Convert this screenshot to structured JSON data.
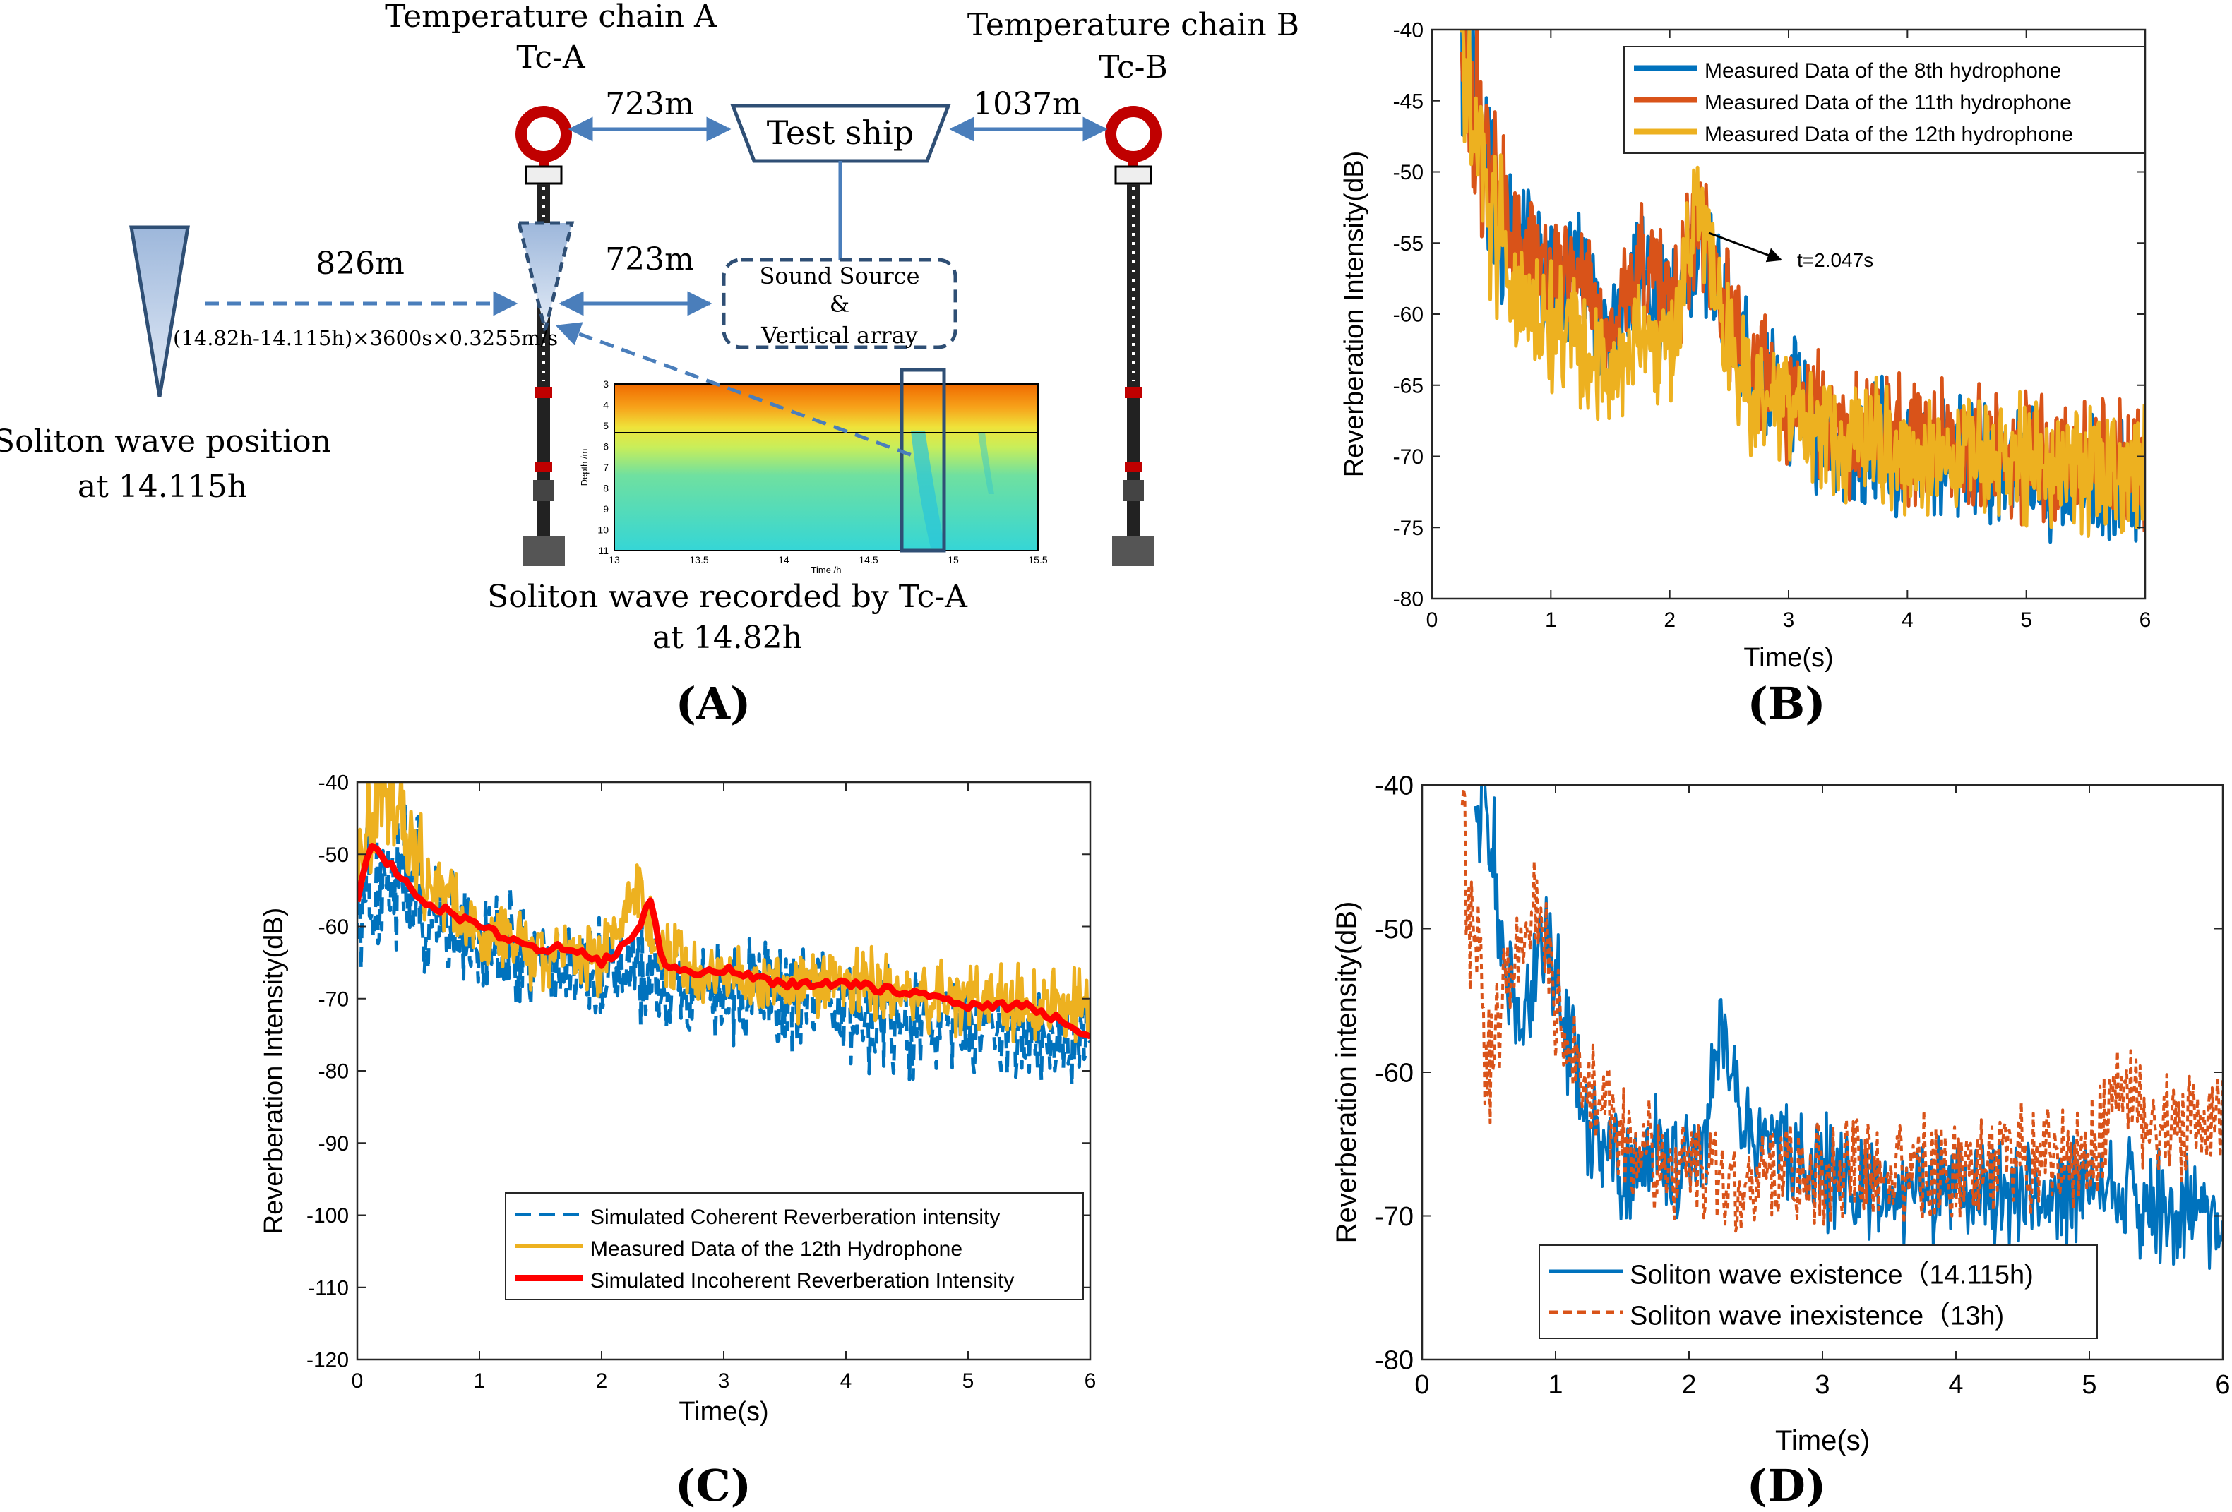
{
  "colors": {
    "blue": "#0072BD",
    "orange": "#D95319",
    "yellow": "#EDB120",
    "red": "#FF0000",
    "arrow": "#4A7EBB",
    "ring": "#C00000"
  },
  "panel_a": {
    "letter": "(A)",
    "chain_a_title": "Temperature chain A",
    "chain_a_short": "Tc-A",
    "chain_b_title": "Temperature chain B",
    "chain_b_short": "Tc-B",
    "ship_label": "Test ship",
    "dist_a_ship": "723m",
    "dist_ship_b": "1037m",
    "dist_a_source": "723m",
    "dist_soliton": "826m",
    "formula": "(14.82h-14.115h)×3600s×0.3255m/s",
    "source_line1": "Sound Source",
    "source_line2": "&",
    "source_line3": "Vertical array",
    "soliton_pos_line1": "Soliton wave position",
    "soliton_pos_line2": "at 14.115h",
    "recorded_line1": "Soliton wave recorded by Tc-A",
    "recorded_line2": "at 14.82h",
    "inset": {
      "ylabel": "Depth /m",
      "xlabel": "Time /h",
      "yticks": [
        "3",
        "4",
        "5",
        "6",
        "7",
        "8",
        "9",
        "10",
        "11"
      ],
      "xticks": [
        "13",
        "13.5",
        "14",
        "14.5",
        "15",
        "15.5"
      ]
    }
  },
  "chart_data": [
    {
      "id": "B",
      "letter": "(B)",
      "type": "line",
      "xlabel": "Time(s)",
      "ylabel": "Reverberation Intensity(dB)",
      "xlim": [
        0,
        6
      ],
      "ylim": [
        -80,
        -40
      ],
      "xticks": [
        "0",
        "1",
        "2",
        "3",
        "4",
        "5",
        "6"
      ],
      "yticks": [
        "-40",
        "-45",
        "-50",
        "-55",
        "-60",
        "-65",
        "-70",
        "-75",
        "-80"
      ],
      "annotation": "t=2.047s",
      "series": [
        {
          "name": "Measured Data of the 8th hydrophone",
          "color": "#0072BD",
          "x": [
            0.25,
            0.5,
            0.75,
            1.0,
            1.25,
            1.5,
            1.75,
            2.0,
            2.25,
            2.5,
            2.75,
            3.0,
            3.25,
            3.5,
            3.75,
            4.0,
            4.5,
            5.0,
            5.5,
            6.0
          ],
          "values": [
            -40,
            -52,
            -55,
            -58,
            -57,
            -63,
            -56,
            -61,
            -54,
            -61,
            -64,
            -66,
            -68,
            -70,
            -69,
            -70,
            -70,
            -71,
            -72,
            -72
          ]
        },
        {
          "name": "Measured Data of the 11th hydrophone",
          "color": "#D95319",
          "x": [
            0.25,
            0.5,
            0.75,
            1.0,
            1.25,
            1.5,
            1.75,
            2.0,
            2.25,
            2.5,
            2.75,
            3.0,
            3.25,
            3.5,
            3.75,
            4.0,
            4.5,
            5.0,
            5.5,
            6.0
          ],
          "values": [
            -42,
            -50,
            -56,
            -58,
            -56,
            -62,
            -56,
            -60,
            -53,
            -60,
            -64,
            -66,
            -67,
            -69,
            -68,
            -69,
            -69,
            -70,
            -70,
            -71
          ]
        },
        {
          "name": "Measured Data of the 12th hydrophone",
          "color": "#EDB120",
          "x": [
            0.25,
            0.5,
            0.75,
            1.0,
            1.25,
            1.5,
            1.75,
            2.0,
            2.25,
            2.5,
            2.75,
            3.0,
            3.25,
            3.5,
            3.75,
            4.0,
            4.5,
            5.0,
            5.5,
            6.0
          ],
          "values": [
            -43,
            -53,
            -60,
            -61,
            -62,
            -65,
            -61,
            -63,
            -52,
            -62,
            -66,
            -67,
            -68,
            -69,
            -69,
            -70,
            -70,
            -70,
            -71,
            -71
          ]
        }
      ]
    },
    {
      "id": "C",
      "letter": "(C)",
      "type": "line",
      "xlabel": "Time(s)",
      "ylabel": "Reverberation Intensity(dB)",
      "xlim": [
        0,
        6
      ],
      "ylim": [
        -120,
        -40
      ],
      "xticks": [
        "0",
        "1",
        "2",
        "3",
        "4",
        "5",
        "6"
      ],
      "yticks": [
        "-40",
        "-50",
        "-60",
        "-70",
        "-80",
        "-90",
        "-100",
        "-110",
        "-120"
      ],
      "series": [
        {
          "name": "Simulated Coherent Reverberation intensity",
          "color": "#0072BD",
          "x": [
            0.0,
            0.25,
            0.5,
            0.75,
            1.0,
            1.25,
            1.5,
            1.75,
            2.0,
            2.25,
            2.5,
            2.75,
            3.0,
            3.5,
            4.0,
            4.5,
            5.0,
            5.5,
            6.0
          ],
          "values": [
            -55,
            -52,
            -57,
            -59,
            -61,
            -63,
            -64,
            -66,
            -66,
            -65,
            -67,
            -68,
            -69,
            -70,
            -72,
            -74,
            -74,
            -75,
            -76
          ]
        },
        {
          "name": "Measured Data of the 12th Hydrophone",
          "color": "#EDB120",
          "x": [
            0.0,
            0.25,
            0.5,
            0.75,
            1.0,
            1.25,
            1.5,
            1.75,
            2.0,
            2.25,
            2.5,
            2.75,
            3.0,
            3.5,
            4.0,
            4.5,
            5.0,
            5.5,
            6.0
          ],
          "values": [
            -48,
            -40,
            -52,
            -56,
            -62,
            -62,
            -64,
            -63,
            -65,
            -55,
            -64,
            -66,
            -67,
            -68,
            -68,
            -69,
            -70,
            -71,
            -71
          ]
        },
        {
          "name": "Simulated Incoherent Reverberation Intensity",
          "color": "#FF0000",
          "x": [
            0.0,
            0.1,
            0.25,
            0.5,
            0.75,
            1.0,
            1.25,
            1.5,
            1.75,
            2.0,
            2.25,
            2.4,
            2.5,
            2.75,
            3.0,
            3.5,
            4.0,
            4.5,
            5.0,
            5.5,
            6.0
          ],
          "values": [
            -56,
            -49,
            -51,
            -56,
            -58,
            -60,
            -62,
            -63,
            -63,
            -65,
            -62,
            -56,
            -65,
            -67,
            -66,
            -68,
            -68,
            -69,
            -71,
            -71,
            -75
          ]
        }
      ]
    },
    {
      "id": "D",
      "letter": "(D)",
      "type": "line",
      "xlabel": "Time(s)",
      "ylabel": "Reverberation intensity(dB)",
      "xlim": [
        0,
        6
      ],
      "ylim": [
        -80,
        -40
      ],
      "xticks": [
        "0",
        "1",
        "2",
        "3",
        "4",
        "5",
        "6"
      ],
      "yticks": [
        "-40",
        "-50",
        "-60",
        "-70",
        "-80"
      ],
      "series": [
        {
          "name": "Soliton wave existence（14.115h)",
          "color": "#0072BD",
          "x": [
            0.4,
            0.5,
            0.6,
            0.75,
            0.9,
            1.0,
            1.1,
            1.25,
            1.5,
            1.75,
            2.0,
            2.15,
            2.25,
            2.4,
            2.75,
            3.0,
            3.5,
            4.0,
            4.5,
            5.0,
            5.5,
            6.0
          ],
          "values": [
            -40,
            -43,
            -52,
            -57,
            -52,
            -52,
            -58,
            -64,
            -67,
            -66,
            -67,
            -63,
            -56,
            -64,
            -66,
            -67,
            -68,
            -68,
            -69,
            -68,
            -69,
            -71
          ]
        },
        {
          "name": "Soliton wave inexistence（13h)",
          "color": "#D95319",
          "x": [
            0.3,
            0.4,
            0.5,
            0.6,
            0.75,
            0.9,
            1.0,
            1.25,
            1.5,
            1.75,
            2.0,
            2.5,
            3.0,
            3.5,
            4.0,
            4.5,
            5.0,
            5.25,
            5.5,
            6.0
          ],
          "values": [
            -42,
            -52,
            -60,
            -55,
            -50,
            -49,
            -55,
            -60,
            -64,
            -66,
            -67,
            -68,
            -67,
            -67,
            -67,
            -66,
            -66,
            -61,
            -64,
            -63
          ]
        }
      ]
    }
  ]
}
